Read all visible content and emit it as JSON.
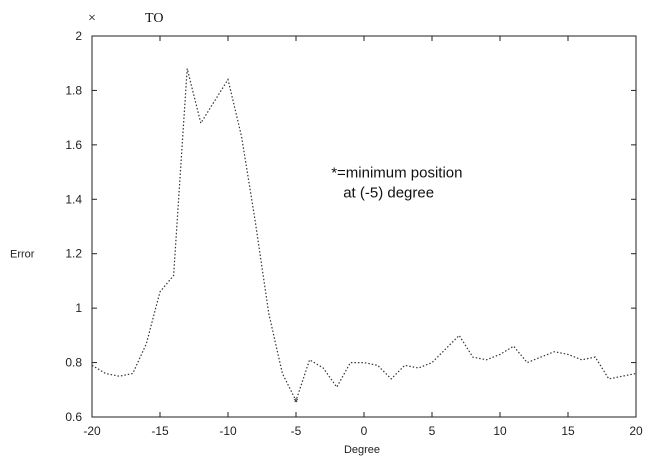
{
  "chart_data": {
    "type": "line",
    "title": "",
    "xlabel": "Degree",
    "ylabel": "Error",
    "scale_note": {
      "symbol": "×",
      "text": "ТО"
    },
    "xlim": [
      -20,
      20
    ],
    "ylim": [
      0.6,
      2.0
    ],
    "x_ticks": [
      -20,
      -15,
      -10,
      -5,
      0,
      5,
      10,
      15,
      20
    ],
    "x_tick_labels": [
      "-20",
      "-15",
      "-10",
      "-5",
      "0",
      "5",
      "10",
      "15",
      "20"
    ],
    "y_ticks": [
      0.6,
      0.8,
      1.0,
      1.2,
      1.4,
      1.6,
      1.8,
      2.0
    ],
    "y_tick_labels": [
      "0.6",
      "0.8",
      "1",
      "1.2",
      "1.4",
      "1.6",
      "1.8",
      "2"
    ],
    "grid": false,
    "series": [
      {
        "line_style": "dotted",
        "color": "#333333",
        "points": [
          [
            -20,
            0.79
          ],
          [
            -19,
            0.76
          ],
          [
            -18,
            0.75
          ],
          [
            -17,
            0.76
          ],
          [
            -16,
            0.87
          ],
          [
            -15,
            1.06
          ],
          [
            -14,
            1.12
          ],
          [
            -13.5,
            1.5
          ],
          [
            -13,
            1.88
          ],
          [
            -12,
            1.68
          ],
          [
            -11,
            1.76
          ],
          [
            -10,
            1.84
          ],
          [
            -9,
            1.63
          ],
          [
            -8,
            1.32
          ],
          [
            -7,
            0.98
          ],
          [
            -6,
            0.76
          ],
          [
            -5,
            0.66
          ],
          [
            -4,
            0.81
          ],
          [
            -3,
            0.78
          ],
          [
            -2,
            0.71
          ],
          [
            -1,
            0.8
          ],
          [
            0,
            0.8
          ],
          [
            1,
            0.79
          ],
          [
            2,
            0.74
          ],
          [
            3,
            0.79
          ],
          [
            4,
            0.78
          ],
          [
            5,
            0.8
          ],
          [
            6,
            0.85
          ],
          [
            7,
            0.9
          ],
          [
            8,
            0.82
          ],
          [
            9,
            0.81
          ],
          [
            10,
            0.83
          ],
          [
            11,
            0.86
          ],
          [
            12,
            0.8
          ],
          [
            13,
            0.82
          ],
          [
            14,
            0.84
          ],
          [
            15,
            0.83
          ],
          [
            16,
            0.81
          ],
          [
            17,
            0.82
          ],
          [
            18,
            0.74
          ],
          [
            19,
            0.75
          ],
          [
            20,
            0.76
          ]
        ]
      }
    ],
    "marker": {
      "x": -5,
      "y": 0.66,
      "symbol": "*"
    },
    "annotation": {
      "lines": [
        "*=minimum position",
        "at (-5) degree"
      ],
      "x": 2,
      "y": 1.48
    }
  }
}
